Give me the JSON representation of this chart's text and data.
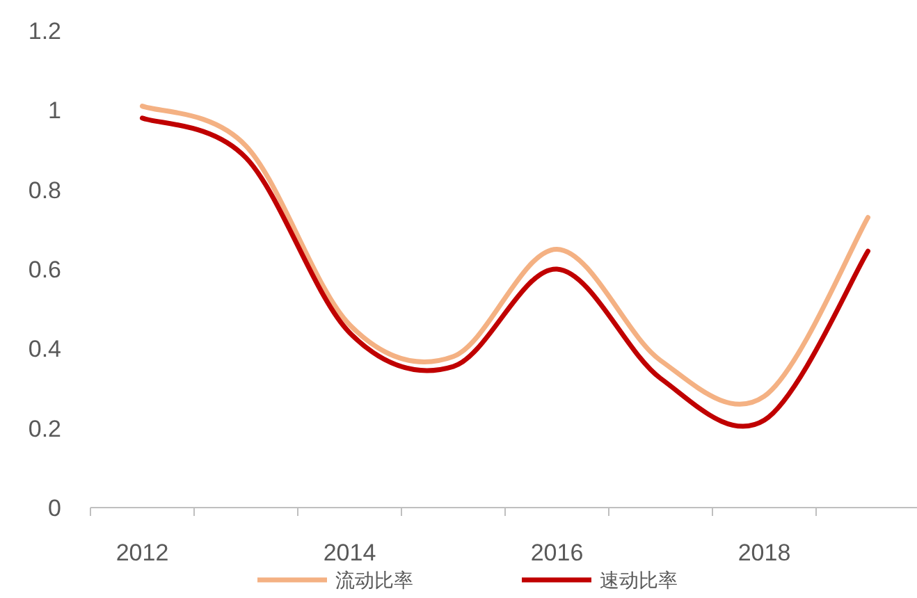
{
  "chart_data": {
    "type": "line",
    "categories": [
      "2012",
      null,
      "2014",
      null,
      "2016",
      null,
      "2018",
      null
    ],
    "series": [
      {
        "name": "流动比率",
        "color": "#f4b183",
        "values": [
          1.01,
          0.91,
          0.46,
          0.38,
          0.65,
          0.37,
          0.28,
          0.73
        ]
      },
      {
        "name": "速动比率",
        "color": "#c00000",
        "values": [
          0.98,
          0.88,
          0.44,
          0.355,
          0.6,
          0.325,
          0.22,
          0.645
        ]
      }
    ],
    "ylim": [
      0,
      1.2
    ],
    "yticks": [
      0,
      0.2,
      0.4,
      0.6,
      0.8,
      1,
      1.2
    ],
    "grid": false,
    "legend": "bottom",
    "marker": "none",
    "line_style": "solid"
  }
}
